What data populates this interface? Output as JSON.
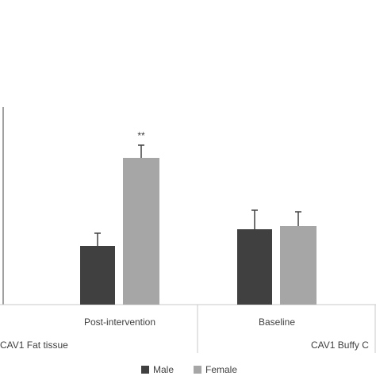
{
  "chart_data": {
    "type": "bar",
    "categories": [
      "Post-intervention",
      "Baseline"
    ],
    "group_labels": [
      "CAV1 Fat tissue",
      "CAV1 Buffy C"
    ],
    "series": [
      {
        "name": "Male",
        "color": "#404040",
        "values": [
          74,
          95
        ],
        "errors": [
          16,
          24
        ]
      },
      {
        "name": "Female",
        "color": "#a6a6a6",
        "values": [
          185,
          99
        ],
        "errors": [
          16,
          18
        ]
      }
    ],
    "annotations": [
      {
        "text": "**",
        "category": "Post-intervention",
        "series": "Female"
      }
    ],
    "ylim": [
      0,
      250
    ]
  }
}
